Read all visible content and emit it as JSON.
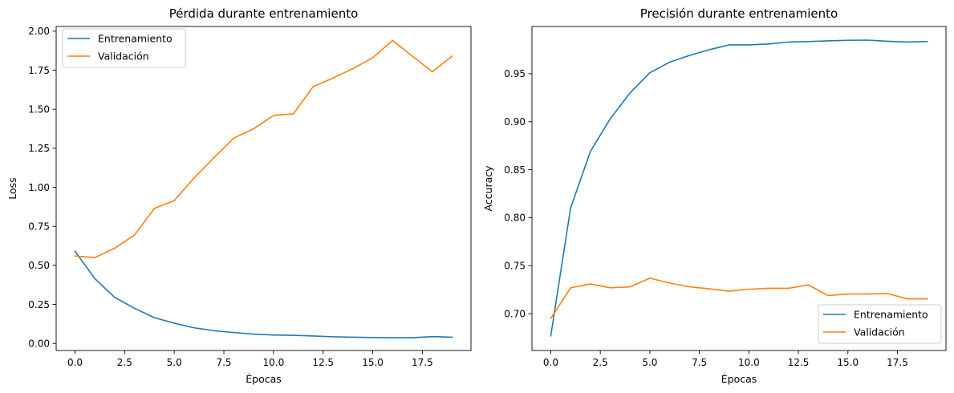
{
  "chart_data": [
    {
      "type": "line",
      "title": "Pérdida durante entrenamiento",
      "xlabel": "Épocas",
      "ylabel": "Loss",
      "xlim": [
        -0.95,
        19.95
      ],
      "ylim": [
        -0.045,
        2.03
      ],
      "xticks": [
        0.0,
        2.5,
        5.0,
        7.5,
        10.0,
        12.5,
        15.0,
        17.5
      ],
      "xtick_labels": [
        "0.0",
        "2.5",
        "5.0",
        "7.5",
        "10.0",
        "12.5",
        "15.0",
        "17.5"
      ],
      "yticks": [
        0.0,
        0.25,
        0.5,
        0.75,
        1.0,
        1.25,
        1.5,
        1.75,
        2.0
      ],
      "ytick_labels": [
        "0.00",
        "0.25",
        "0.50",
        "0.75",
        "1.00",
        "1.25",
        "1.50",
        "1.75",
        "2.00"
      ],
      "grid": false,
      "legend": "top-left",
      "x": [
        0,
        1,
        2,
        3,
        4,
        5,
        6,
        7,
        8,
        9,
        10,
        11,
        12,
        13,
        14,
        15,
        16,
        17,
        18,
        19
      ],
      "series": [
        {
          "name": "Entrenamiento",
          "color": "#1f77b4",
          "values": [
            0.59,
            0.415,
            0.295,
            0.225,
            0.165,
            0.13,
            0.1,
            0.082,
            0.07,
            0.06,
            0.054,
            0.052,
            0.048,
            0.043,
            0.04,
            0.038,
            0.037,
            0.037,
            0.044,
            0.04
          ]
        },
        {
          "name": "Validación",
          "color": "#ff7f0e",
          "values": [
            0.56,
            0.55,
            0.61,
            0.695,
            0.865,
            0.915,
            1.06,
            1.19,
            1.315,
            1.375,
            1.46,
            1.47,
            1.645,
            1.7,
            1.76,
            1.83,
            1.94,
            1.84,
            1.74,
            1.84
          ]
        }
      ]
    },
    {
      "type": "line",
      "title": "Precisión durante entrenamiento",
      "xlabel": "Épocas",
      "ylabel": "Accuracy",
      "xlim": [
        -0.95,
        19.95
      ],
      "ylim": [
        0.6617,
        0.9992
      ],
      "xticks": [
        0.0,
        2.5,
        5.0,
        7.5,
        10.0,
        12.5,
        15.0,
        17.5
      ],
      "xtick_labels": [
        "0.0",
        "2.5",
        "5.0",
        "7.5",
        "10.0",
        "12.5",
        "15.0",
        "17.5"
      ],
      "yticks": [
        0.7,
        0.75,
        0.8,
        0.85,
        0.9,
        0.95
      ],
      "ytick_labels": [
        "0.70",
        "0.75",
        "0.80",
        "0.85",
        "0.90",
        "0.95"
      ],
      "grid": false,
      "legend": "bottom-right",
      "x": [
        0,
        1,
        2,
        3,
        4,
        5,
        6,
        7,
        8,
        9,
        10,
        11,
        12,
        13,
        14,
        15,
        16,
        17,
        18,
        19
      ],
      "series": [
        {
          "name": "Entrenamiento",
          "color": "#1f77b4",
          "values": [
            0.677,
            0.81,
            0.869,
            0.903,
            0.93,
            0.951,
            0.962,
            0.969,
            0.975,
            0.98,
            0.98,
            0.981,
            0.983,
            0.9835,
            0.9842,
            0.9848,
            0.985,
            0.9838,
            0.983,
            0.9835
          ]
        },
        {
          "name": "Validación",
          "color": "#ff7f0e",
          "values": [
            0.695,
            0.727,
            0.731,
            0.727,
            0.728,
            0.737,
            0.732,
            0.728,
            0.726,
            0.7235,
            0.7255,
            0.7265,
            0.7265,
            0.73,
            0.719,
            0.7205,
            0.7205,
            0.721,
            0.7155,
            0.7155
          ]
        }
      ]
    }
  ]
}
